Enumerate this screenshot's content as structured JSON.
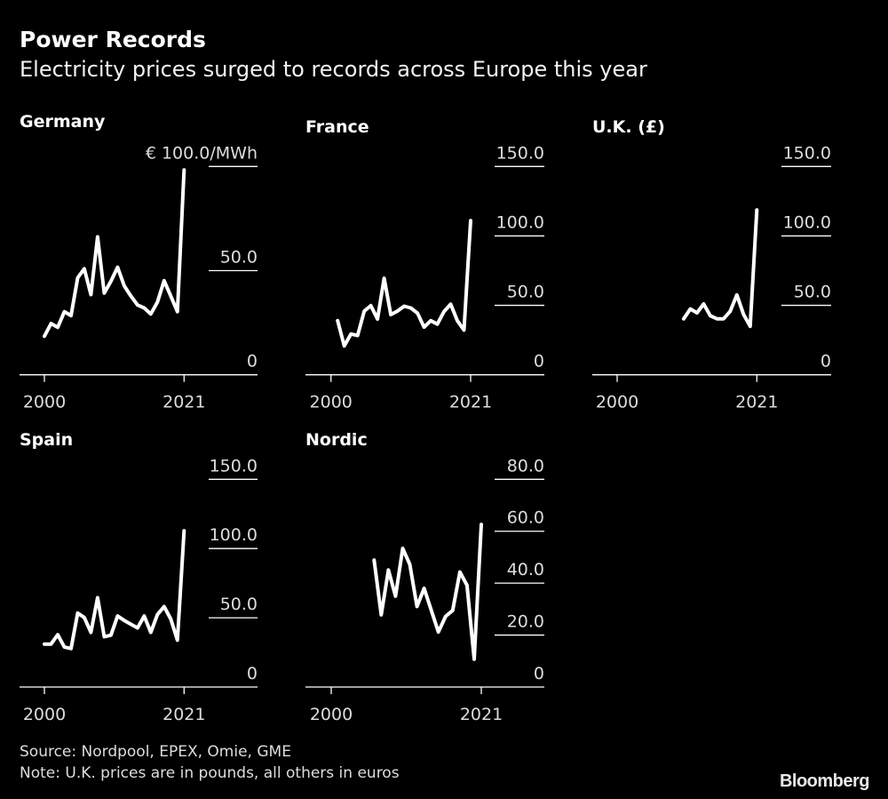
{
  "header": {
    "title": "Power Records",
    "subtitle": "Electricity prices surged to records across Europe this year"
  },
  "footer": {
    "source": "Source: Nordpool, EPEX, Omie, GME",
    "note": "Note: U.K. prices are in pounds, all others in euros",
    "logo": "Bloomberg"
  },
  "colors": {
    "background": "#000000",
    "line": "#ffffff",
    "text": "#dddddd"
  },
  "chart_data": [
    {
      "type": "line",
      "title": "Germany",
      "unit_label": "€ 100.0/MWh",
      "x_ticks": [
        "2000",
        "2021"
      ],
      "xlim": [
        2000,
        2021
      ],
      "y_ticks": [
        0,
        50,
        100
      ],
      "y_tick_labels": [
        "0",
        "50.0",
        "€ 100.0/MWh"
      ],
      "ylim": [
        0,
        100
      ],
      "grid": true,
      "x": [
        2000,
        2001,
        2002,
        2003,
        2004,
        2005,
        2006,
        2007,
        2008,
        2009,
        2010,
        2011,
        2012,
        2013,
        2014,
        2015,
        2016,
        2017,
        2018,
        2019,
        2020,
        2021
      ],
      "values": [
        18.5,
        24.6,
        22.8,
        30.3,
        28.4,
        46.6,
        50.9,
        38.5,
        66.2,
        39.2,
        44.9,
        51.6,
        42.7,
        37.8,
        33.5,
        32.1,
        29.2,
        34.9,
        45.2,
        37.8,
        30.3,
        98.3
      ]
    },
    {
      "type": "line",
      "title": "France",
      "x_ticks": [
        "2000",
        "2021"
      ],
      "xlim": [
        2000,
        2021
      ],
      "y_ticks": [
        0,
        50,
        100,
        150
      ],
      "y_tick_labels": [
        "0",
        "50.0",
        "100.0",
        "150.0"
      ],
      "ylim": [
        0,
        150
      ],
      "grid": true,
      "x": [
        2001,
        2002,
        2003,
        2004,
        2005,
        2006,
        2007,
        2008,
        2009,
        2010,
        2011,
        2012,
        2013,
        2014,
        2015,
        2016,
        2017,
        2018,
        2019,
        2020,
        2021
      ],
      "values": [
        39.0,
        20.8,
        29.4,
        28.3,
        45.9,
        49.8,
        40.1,
        69.5,
        43.3,
        45.9,
        49.4,
        48.1,
        44.4,
        34.3,
        39.0,
        36.5,
        45.5,
        50.9,
        39.0,
        32.2,
        111.0
      ]
    },
    {
      "type": "line",
      "title": "U.K. (£)",
      "x_ticks": [
        "2000",
        "2021"
      ],
      "xlim": [
        2000,
        2021
      ],
      "y_ticks": [
        0,
        50,
        100,
        150
      ],
      "y_tick_labels": [
        "0",
        "50.0",
        "100.0",
        "150.0"
      ],
      "ylim": [
        0,
        150
      ],
      "grid": true,
      "x": [
        2010,
        2011,
        2012,
        2013,
        2014,
        2015,
        2016,
        2017,
        2018,
        2019,
        2020,
        2021
      ],
      "values": [
        40.3,
        47.4,
        44.6,
        51.0,
        42.5,
        40.3,
        40.3,
        45.7,
        57.5,
        43.5,
        34.9,
        118.7
      ]
    },
    {
      "type": "line",
      "title": "Spain",
      "x_ticks": [
        "2000",
        "2021"
      ],
      "xlim": [
        2000,
        2021
      ],
      "y_ticks": [
        0,
        50,
        100,
        150
      ],
      "y_tick_labels": [
        "0",
        "50.0",
        "100.0",
        "150.0"
      ],
      "ylim": [
        0,
        150
      ],
      "grid": true,
      "x": [
        2000,
        2001,
        2002,
        2003,
        2004,
        2005,
        2006,
        2007,
        2008,
        2009,
        2010,
        2011,
        2012,
        2013,
        2014,
        2015,
        2016,
        2017,
        2018,
        2019,
        2020,
        2021
      ],
      "values": [
        31.0,
        31.0,
        37.8,
        28.8,
        27.8,
        53.4,
        50.2,
        39.5,
        64.5,
        36.3,
        37.4,
        51.3,
        48.1,
        45.3,
        42.7,
        51.3,
        39.5,
        52.4,
        58.1,
        49.1,
        33.8,
        112.8
      ]
    },
    {
      "type": "line",
      "title": "Nordic",
      "x_ticks": [
        "2000",
        "2021"
      ],
      "xlim": [
        2000,
        2021
      ],
      "y_ticks": [
        0,
        20,
        40,
        60,
        80
      ],
      "y_tick_labels": [
        "0",
        "20.0",
        "40.0",
        "60.0",
        "80.0"
      ],
      "ylim": [
        0,
        80
      ],
      "grid": true,
      "x": [
        2006,
        2007,
        2008,
        2009,
        2010,
        2011,
        2012,
        2013,
        2014,
        2015,
        2016,
        2017,
        2018,
        2019,
        2020,
        2021
      ],
      "values": [
        48.9,
        27.8,
        45.1,
        35.0,
        53.4,
        47.2,
        31.0,
        38.0,
        29.5,
        21.2,
        27.2,
        29.5,
        44.3,
        39.2,
        10.7,
        62.6
      ]
    }
  ]
}
